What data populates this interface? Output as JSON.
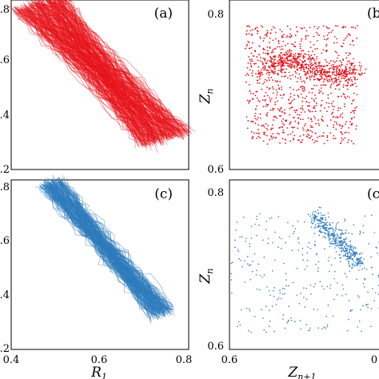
{
  "chart_data": [
    {
      "panel": "(a)",
      "type": "line",
      "color": "#e8141c",
      "xlim": [
        0.4,
        0.8
      ],
      "ylim": [
        0.2,
        0.8
      ],
      "x_ticks": [],
      "y_ticks": [
        ".2",
        ".4",
        ".6",
        ".8"
      ],
      "xlabel": "",
      "ylabel": "",
      "band": {
        "top_left": [
          0.46,
          0.79
        ],
        "bottom_right": [
          0.75,
          0.31
        ],
        "width": 0.14
      },
      "series": [
        {
          "values": "dense trajectory band from (0.46,0.79) to (0.75,0.31)"
        }
      ]
    },
    {
      "panel": "(b",
      "type": "scatter",
      "color": "#e8141c",
      "xlim": [
        0.6,
        0.8
      ],
      "ylim": [
        0.6,
        0.8
      ],
      "x_ticks": [],
      "y_ticks": [
        "0.8",
        "0.6"
      ],
      "xlabel": "",
      "ylabel": "Z_n",
      "cloud": {
        "x_range": [
          0.62,
          0.76
        ],
        "y_range": [
          0.63,
          0.77
        ]
      }
    },
    {
      "panel": "(c)",
      "type": "line",
      "color": "#2f7bbd",
      "xlim": [
        0.4,
        0.8
      ],
      "ylim": [
        0.2,
        0.8
      ],
      "x_ticks": [
        "0.4",
        "0.6",
        "0.8"
      ],
      "y_ticks": [
        ".2",
        ".4",
        ".6",
        ".8"
      ],
      "xlabel": "R_1",
      "ylabel": "",
      "band": {
        "top_left": [
          0.49,
          0.79
        ],
        "bottom_right": [
          0.74,
          0.33
        ],
        "width": 0.06
      }
    },
    {
      "panel": "(c",
      "type": "scatter",
      "color": "#2f7bbd",
      "xlim": [
        0.6,
        0.8
      ],
      "ylim": [
        0.6,
        0.8
      ],
      "x_ticks": [
        "0.6",
        "0"
      ],
      "y_ticks": [
        "0.8",
        "0.6"
      ],
      "xlabel": "Z_{n+1}",
      "ylabel": "Z_n",
      "cloud": {
        "x_range": [
          0.6,
          0.79
        ],
        "y_range": [
          0.62,
          0.76
        ]
      }
    }
  ]
}
